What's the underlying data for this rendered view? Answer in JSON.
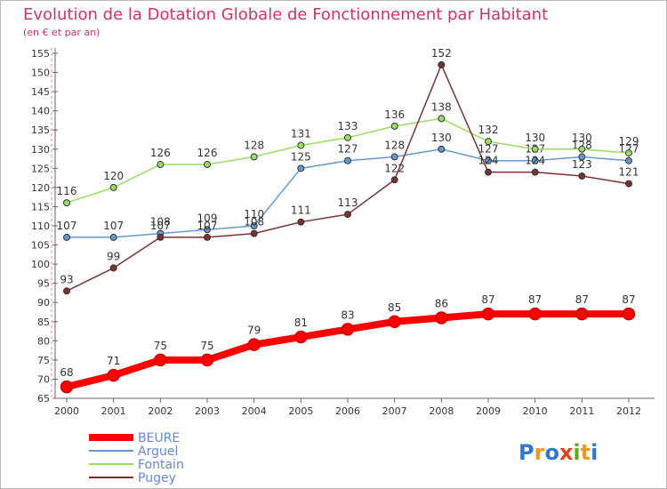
{
  "chart_data": {
    "type": "line",
    "title": "Evolution de la Dotation Globale de Fonctionnement par Habitant",
    "subtitle": "(en € et par an)",
    "x": [
      "2000",
      "2001",
      "2002",
      "2003",
      "2004",
      "2005",
      "2006",
      "2007",
      "2008",
      "2009",
      "2010",
      "2011",
      "2012"
    ],
    "ylim": [
      65,
      155
    ],
    "yticks": [
      65,
      70,
      75,
      80,
      85,
      90,
      95,
      100,
      105,
      110,
      115,
      120,
      125,
      130,
      135,
      140,
      145,
      150,
      155
    ],
    "grid": false,
    "legend_position": "bottom-left",
    "series": [
      {
        "name": "BEURE",
        "color": "#ff0000",
        "emphasis": true,
        "values": [
          68,
          71,
          75,
          75,
          79,
          81,
          83,
          85,
          86,
          87,
          87,
          87,
          87
        ]
      },
      {
        "name": "Arguel",
        "color": "#6699cc",
        "emphasis": false,
        "values": [
          107,
          107,
          108,
          109,
          110,
          125,
          127,
          128,
          130,
          127,
          127,
          128,
          127
        ]
      },
      {
        "name": "Fontain",
        "color": "#99dd66",
        "emphasis": false,
        "values": [
          116,
          120,
          126,
          126,
          128,
          131,
          133,
          136,
          138,
          132,
          130,
          130,
          129
        ]
      },
      {
        "name": "Pugey",
        "color": "#773333",
        "emphasis": false,
        "values": [
          93,
          99,
          107,
          107,
          108,
          111,
          113,
          122,
          152,
          124,
          124,
          123,
          121
        ]
      }
    ]
  },
  "watermark": "Proxiti"
}
